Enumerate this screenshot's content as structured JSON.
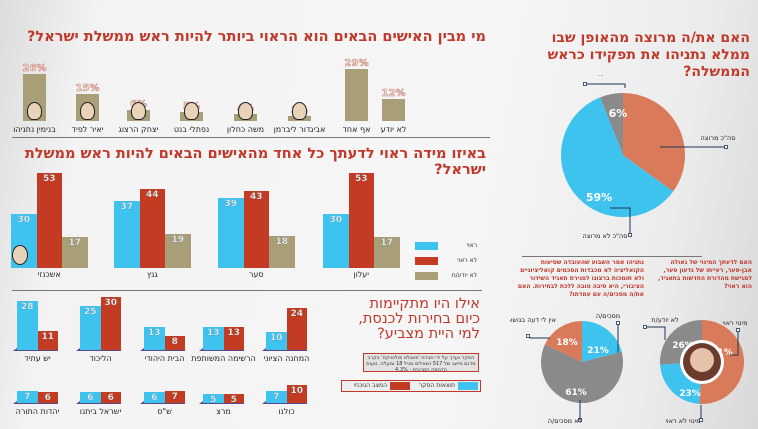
{
  "colors": {
    "blue": "#3ec3ef",
    "red": "#c23b22",
    "olive": "#a89f78",
    "orange": "#d97a5a",
    "gray": "#8a8a8a",
    "title": "#c0392b"
  },
  "chart_data": [
    {
      "type": "bar",
      "title": "מי מבין האישים הבאים הוא הראוי ביותר להיות ראש ממשלת ישראל?",
      "categories": [
        "בנימין נתניהו",
        "יאיר לפיד",
        "יצחק הרצוג",
        "נפתלי בנט",
        "משה כחלון",
        "אביגדור ליברמן",
        "אף אחד",
        "לא יודע"
      ],
      "values": [
        26,
        15,
        6,
        5,
        4,
        3,
        29,
        12
      ],
      "unit": "%"
    },
    {
      "type": "bar",
      "title": "באיזו מידה ראוי לדעתך כל אחד מהאישים הבאים להיות ראש ממשלת ישראל?",
      "categories": [
        "אשכנזי",
        "גנץ",
        "סער",
        "יעלון"
      ],
      "series": [
        {
          "name": "ראוי",
          "values": [
            30,
            37,
            39,
            30
          ]
        },
        {
          "name": "לא ראוי",
          "values": [
            53,
            44,
            43,
            53
          ]
        },
        {
          "name": "לא יודע/ת",
          "values": [
            17,
            19,
            18,
            17
          ]
        }
      ]
    },
    {
      "type": "bar",
      "title": "אילו היו מתקיימות כיום בחירות לכנסת, למי היית מצביע?",
      "categories": [
        "יש עתיד",
        "הליכוד",
        "הבית היהודי",
        "הרשימה המשותפת",
        "המחנה הציוני",
        "יהדות התורה",
        "ישראל ביתנו",
        "ש\"ס",
        "מרצ",
        "כולנו"
      ],
      "series": [
        {
          "name": "תוצאות הסקר",
          "values": [
            28,
            25,
            13,
            13,
            10,
            7,
            6,
            6,
            5,
            7
          ]
        },
        {
          "name": "המצב הנוכחי",
          "values": [
            11,
            30,
            8,
            13,
            24,
            6,
            6,
            7,
            5,
            10
          ]
        }
      ],
      "note": "הסקר נערך על ידי חברת 'פאנלס פוליטיקס' בקרב מדגם מייצג של 517 נשאלים מגיל 18 ומעלה. טעות הדגימה המרבית - 4.3%"
    },
    {
      "type": "pie",
      "title": "האם את/ה מרוצה מהאופן שבו ממלא נתניהו את תפקידו כראש הממשלה?",
      "slices": [
        {
          "label": "סה\"כ מרוצה",
          "value": 35
        },
        {
          "label": "סה\"כ לא מרוצה",
          "value": 59
        },
        {
          "label": "לא יודע/ת",
          "value": 6
        }
      ]
    },
    {
      "type": "pie",
      "title": "נתניהו אמר השבוע שהעובדה שסיעות הקואליציה לא מכבדות הסכמים קואליציוניים ולא תומכות ברצונו לסגירת תאגיד השידור הציבורי, היא סיבה טובה ללכת לבחירות. האם את/ה מסכים/ה עם עמדתו?",
      "slices": [
        {
          "label": "מסכים/ה",
          "value": 21
        },
        {
          "label": "לא מסכים/ה",
          "value": 61
        },
        {
          "label": "אין לי דעה בנושא",
          "value": 18
        }
      ]
    },
    {
      "type": "pie",
      "title": "האם לדעתך המינוי של גאולה אבן-סער, רעייתו של גדעון סער, למגישת מהדורת החדשות בתאגיד, הוא ראוי?",
      "slices": [
        {
          "label": "מינוי ראוי",
          "value": 51
        },
        {
          "label": "מינוי לא ראוי",
          "value": 23
        },
        {
          "label": "לא יודע/ת",
          "value": 26
        }
      ]
    }
  ]
}
